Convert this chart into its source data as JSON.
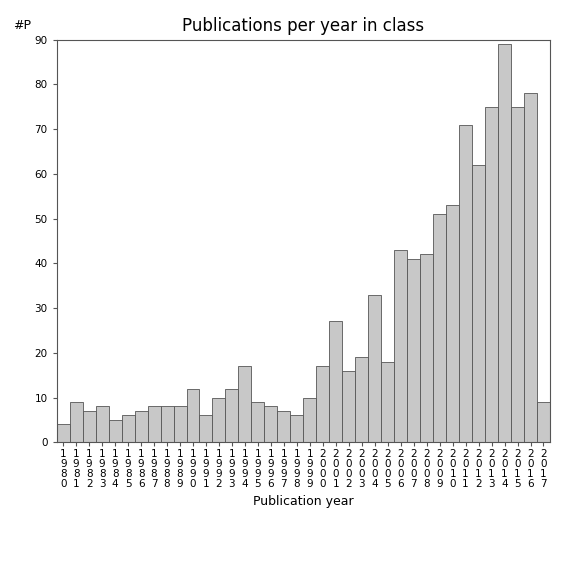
{
  "title": "Publications per year in class",
  "xlabel": "Publication year",
  "ylabel": "#P",
  "years": [
    1980,
    1981,
    1982,
    1983,
    1984,
    1985,
    1986,
    1987,
    1988,
    1989,
    1990,
    1991,
    1992,
    1993,
    1994,
    1995,
    1996,
    1997,
    1998,
    1999,
    2000,
    2001,
    2002,
    2003,
    2004,
    2005,
    2006,
    2007,
    2008,
    2009,
    2010,
    2011,
    2012,
    2013,
    2014,
    2015,
    2016,
    2017
  ],
  "values": [
    4,
    9,
    7,
    8,
    5,
    6,
    7,
    8,
    8,
    8,
    12,
    6,
    10,
    12,
    17,
    9,
    8,
    7,
    6,
    10,
    17,
    27,
    16,
    19,
    33,
    18,
    43,
    41,
    42,
    51,
    53,
    71,
    62,
    75,
    89,
    75,
    78,
    9
  ],
  "bar_color": "#c8c8c8",
  "bar_edge_color": "#555555",
  "ylim": [
    0,
    90
  ],
  "yticks": [
    0,
    10,
    20,
    30,
    40,
    50,
    60,
    70,
    80,
    90
  ],
  "background_color": "#ffffff",
  "title_fontsize": 12,
  "label_fontsize": 9,
  "tick_fontsize": 7.5
}
